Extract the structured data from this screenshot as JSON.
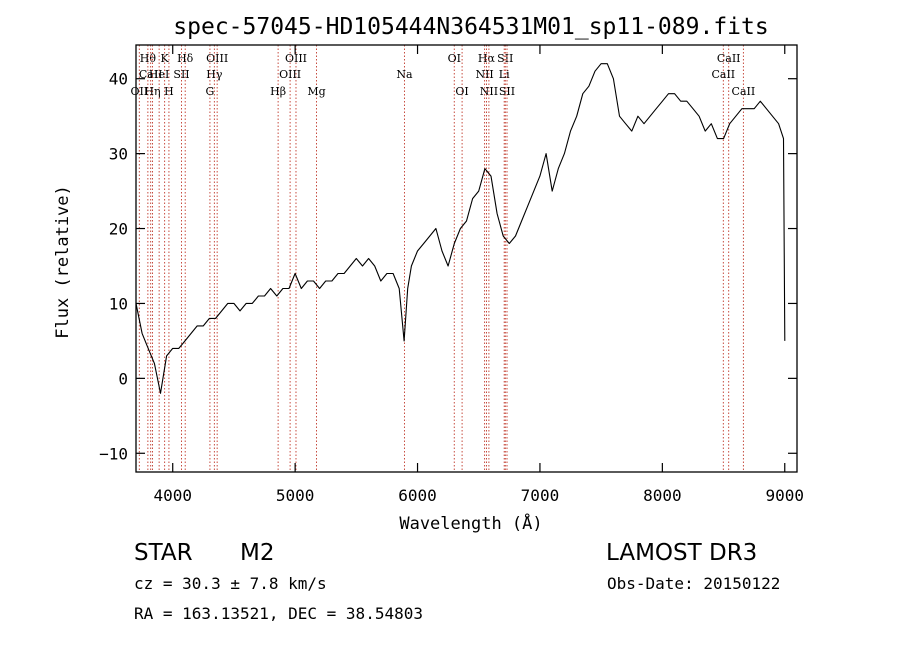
{
  "chart_data": {
    "type": "line",
    "title": "spec-57045-HD105444N364531M01_sp11-089.fits",
    "xlabel": "Wavelength (Å)",
    "ylabel": "Flux (relative)",
    "xlim": [
      3700,
      9100
    ],
    "ylim": [
      -12.5,
      44.5
    ],
    "x_ticks": [
      4000,
      5000,
      6000,
      7000,
      8000,
      9000
    ],
    "y_ticks": [
      -10,
      0,
      10,
      20,
      30,
      40
    ],
    "grid": false,
    "series": [
      {
        "color": "#000000",
        "x": [
          3700,
          3750,
          3800,
          3850,
          3900,
          3950,
          4000,
          4050,
          4100,
          4150,
          4200,
          4250,
          4300,
          4350,
          4400,
          4450,
          4500,
          4550,
          4600,
          4650,
          4700,
          4750,
          4800,
          4850,
          4900,
          4950,
          5000,
          5050,
          5100,
          5150,
          5200,
          5250,
          5300,
          5350,
          5400,
          5450,
          5500,
          5550,
          5600,
          5650,
          5700,
          5750,
          5800,
          5850,
          5890,
          5920,
          5950,
          6000,
          6050,
          6100,
          6150,
          6200,
          6250,
          6300,
          6350,
          6400,
          6450,
          6500,
          6550,
          6600,
          6650,
          6700,
          6750,
          6800,
          6850,
          6900,
          6950,
          7000,
          7050,
          7100,
          7150,
          7200,
          7250,
          7300,
          7350,
          7400,
          7450,
          7500,
          7550,
          7600,
          7650,
          7700,
          7750,
          7800,
          7850,
          7900,
          7950,
          8000,
          8050,
          8100,
          8150,
          8200,
          8250,
          8300,
          8350,
          8400,
          8450,
          8500,
          8550,
          8600,
          8650,
          8700,
          8750,
          8800,
          8850,
          8900,
          8950,
          8990,
          9000
        ],
        "y": [
          10,
          6,
          4,
          2,
          -2,
          3,
          4,
          4,
          5,
          6,
          7,
          7,
          8,
          8,
          9,
          10,
          10,
          9,
          10,
          10,
          11,
          11,
          12,
          11,
          12,
          12,
          14,
          12,
          13,
          13,
          12,
          13,
          13,
          14,
          14,
          15,
          16,
          15,
          16,
          15,
          13,
          14,
          14,
          12,
          5,
          12,
          15,
          17,
          18,
          19,
          20,
          17,
          15,
          18,
          20,
          21,
          24,
          25,
          28,
          27,
          22,
          19,
          18,
          19,
          21,
          23,
          25,
          27,
          30,
          25,
          28,
          30,
          33,
          35,
          38,
          39,
          41,
          42,
          42,
          40,
          35,
          34,
          33,
          35,
          34,
          35,
          36,
          37,
          38,
          38,
          37,
          37,
          36,
          35,
          33,
          34,
          32,
          32,
          34,
          35,
          36,
          36,
          36,
          37,
          36,
          35,
          34,
          32,
          5
        ]
      }
    ],
    "line_markers": [
      {
        "label": "Hθ",
        "x": 3797,
        "row": 1
      },
      {
        "label": "CaII",
        "x": 3820,
        "row": 2
      },
      {
        "label": "OII",
        "x": 3727,
        "row": 3
      },
      {
        "label": "HeI",
        "x": 3889,
        "row": 2
      },
      {
        "label": "Hη",
        "x": 3835,
        "row": 3
      },
      {
        "label": "K",
        "x": 3934,
        "row": 1
      },
      {
        "label": "SII",
        "x": 4072,
        "row": 2
      },
      {
        "label": "H",
        "x": 3969,
        "row": 3
      },
      {
        "label": "Hδ",
        "x": 4102,
        "row": 1
      },
      {
        "label": "OIII",
        "x": 4363,
        "row": 1
      },
      {
        "label": "Hγ",
        "x": 4340,
        "row": 2
      },
      {
        "label": "G",
        "x": 4304,
        "row": 3
      },
      {
        "label": "Hβ",
        "x": 4861,
        "row": 3
      },
      {
        "label": "OIII",
        "x": 5007,
        "row": 1
      },
      {
        "label": "OIII",
        "x": 4959,
        "row": 2
      },
      {
        "label": "Mg",
        "x": 5175,
        "row": 3
      },
      {
        "label": "Na",
        "x": 5893,
        "row": 2
      },
      {
        "label": "OI",
        "x": 6300,
        "row": 1
      },
      {
        "label": "OI",
        "x": 6364,
        "row": 3
      },
      {
        "label": "Hα",
        "x": 6563,
        "row": 1
      },
      {
        "label": "NII",
        "x": 6548,
        "row": 2
      },
      {
        "label": "NII",
        "x": 6583,
        "row": 3
      },
      {
        "label": "SII",
        "x": 6717,
        "row": 1
      },
      {
        "label": "Li",
        "x": 6708,
        "row": 2
      },
      {
        "label": "SII",
        "x": 6731,
        "row": 3
      },
      {
        "label": "CaII",
        "x": 8542,
        "row": 1
      },
      {
        "label": "CaII",
        "x": 8498,
        "row": 2
      },
      {
        "label": "CaII",
        "x": 8662,
        "row": 3
      }
    ]
  },
  "info": {
    "class_label": "STAR",
    "subclass": "M2",
    "cz": "cz = 30.3 ± 7.8 km/s",
    "coords": "RA = 163.13521, DEC =  38.54803",
    "survey": "LAMOST DR3",
    "obs_date": "Obs-Date: 20150122"
  }
}
